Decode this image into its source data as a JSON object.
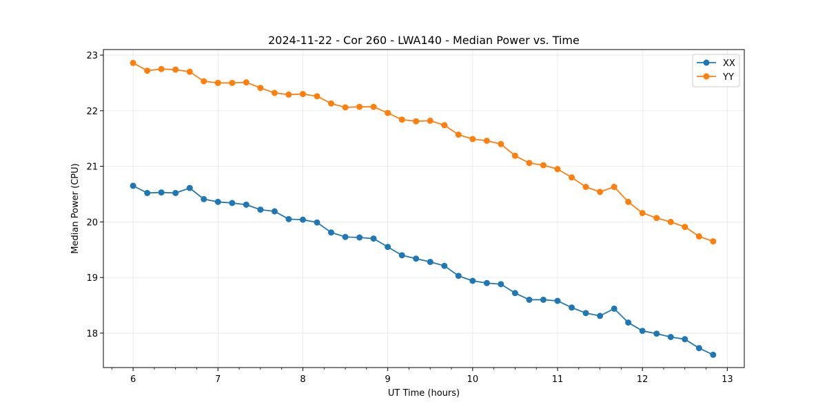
{
  "chart_data": {
    "type": "line",
    "title": "2024-11-22 - Cor 260 - LWA140 - Median Power vs. Time",
    "xlabel": "UT Time (hours)",
    "ylabel": "Median Power (CPU)",
    "xlim": [
      5.65,
      13.2
    ],
    "ylim": [
      17.38,
      23.1
    ],
    "xticks": [
      6,
      7,
      8,
      9,
      10,
      11,
      12,
      13
    ],
    "yticks": [
      18,
      19,
      20,
      21,
      22,
      23
    ],
    "grid": true,
    "legend_position": "top-right",
    "x": [
      6.0,
      6.167,
      6.333,
      6.5,
      6.667,
      6.833,
      7.0,
      7.167,
      7.333,
      7.5,
      7.667,
      7.833,
      8.0,
      8.167,
      8.333,
      8.5,
      8.667,
      8.833,
      9.0,
      9.167,
      9.333,
      9.5,
      9.667,
      9.833,
      10.0,
      10.167,
      10.333,
      10.5,
      10.667,
      10.833,
      11.0,
      11.167,
      11.333,
      11.5,
      11.667,
      11.833,
      12.0,
      12.167,
      12.333,
      12.5,
      12.667,
      12.833
    ],
    "series": [
      {
        "name": "XX",
        "color": "#1f77b4",
        "values": [
          20.65,
          20.52,
          20.53,
          20.52,
          20.61,
          20.41,
          20.36,
          20.34,
          20.31,
          20.22,
          20.19,
          20.05,
          20.04,
          19.99,
          19.81,
          19.73,
          19.72,
          19.7,
          19.55,
          19.4,
          19.34,
          19.28,
          19.21,
          19.03,
          18.94,
          18.9,
          18.88,
          18.72,
          18.6,
          18.6,
          18.58,
          18.46,
          18.36,
          18.31,
          18.44,
          18.19,
          18.04,
          17.99,
          17.93,
          17.89,
          17.73,
          17.61
        ]
      },
      {
        "name": "YY",
        "color": "#ff7f0e",
        "values": [
          22.86,
          22.72,
          22.75,
          22.74,
          22.7,
          22.53,
          22.5,
          22.5,
          22.51,
          22.41,
          22.32,
          22.29,
          22.3,
          22.26,
          22.13,
          22.06,
          22.07,
          22.07,
          21.96,
          21.84,
          21.81,
          21.82,
          21.74,
          21.57,
          21.49,
          21.46,
          21.4,
          21.19,
          21.06,
          21.02,
          20.95,
          20.8,
          20.63,
          20.54,
          20.63,
          20.36,
          20.16,
          20.07,
          20.0,
          19.91,
          19.74,
          19.65
        ]
      }
    ]
  }
}
